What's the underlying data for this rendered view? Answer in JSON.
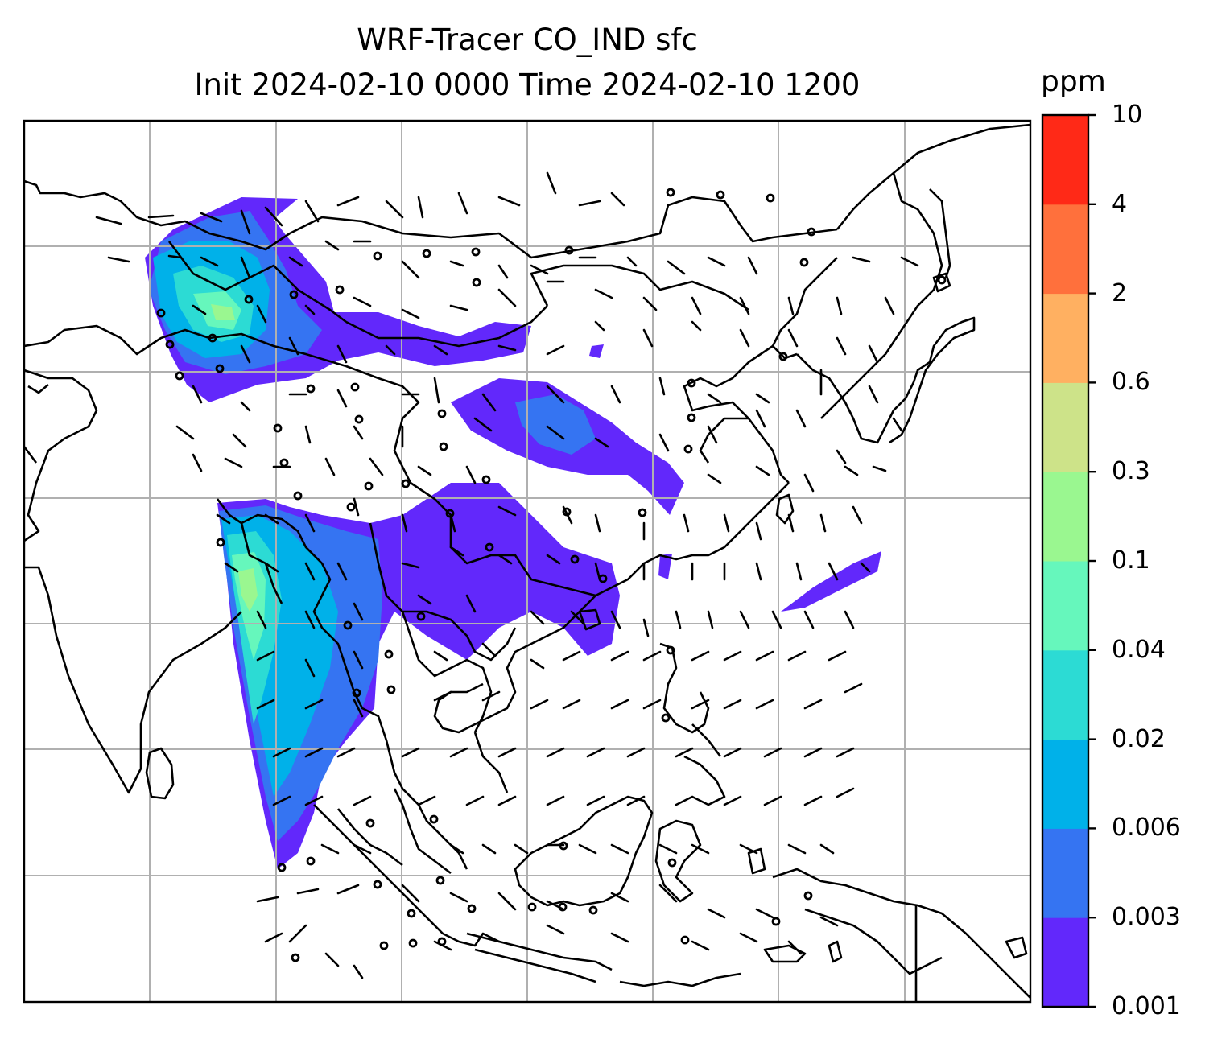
{
  "title": {
    "line1": "WRF-Tracer CO_IND sfc",
    "line2": "Init 2024-02-10 0000 Time 2024-02-10 1200"
  },
  "colorbar": {
    "unit": "ppm",
    "levels": [
      "0.001",
      "0.003",
      "0.006",
      "0.02",
      "0.04",
      "0.1",
      "0.3",
      "0.6",
      "2",
      "4",
      "10"
    ],
    "colors": [
      "#6228fb",
      "#3574f2",
      "#00b1e9",
      "#2cdbd4",
      "#66f7bc",
      "#9af790",
      "#cde389",
      "#ffb061",
      "#ff703c",
      "#ff2917"
    ]
  },
  "map": {
    "gridlines": true,
    "grid_color": "#b0b0b0",
    "coastline_color": "#000000",
    "plume_color": "#6228fb",
    "wind_barb_color": "#000000"
  }
}
